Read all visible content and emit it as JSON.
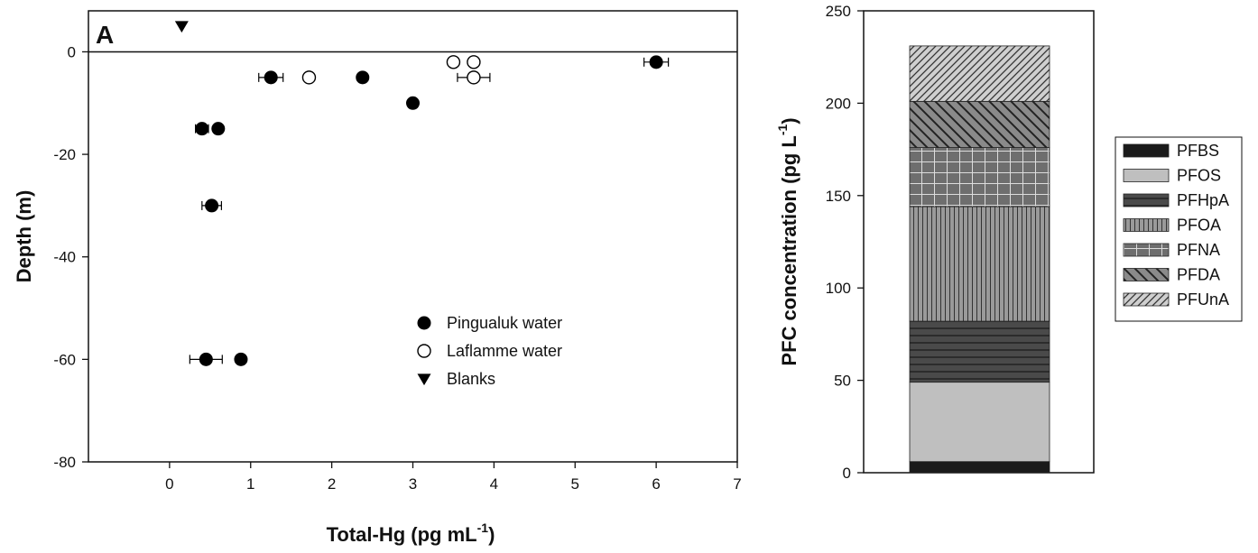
{
  "chart_data": [
    {
      "type": "scatter",
      "panel_label": "A",
      "xlabel": "Total-Hg (pg mL",
      "xlabel_sup": "-1",
      "xlabel_close": ")",
      "ylabel": "Depth (m)",
      "xlim": [
        -1,
        7
      ],
      "ylim": [
        -80,
        8
      ],
      "xticks": [
        0,
        1,
        2,
        3,
        4,
        5,
        6,
        7
      ],
      "yticks": [
        0,
        -20,
        -40,
        -60,
        -80
      ],
      "reference_line_y": 0,
      "legend_position": "bottom-right",
      "series": [
        {
          "name": "Pingualuk water",
          "marker": "filled-circle",
          "points": [
            {
              "x": 1.25,
              "y": -5,
              "xerr": 0.15
            },
            {
              "x": 2.38,
              "y": -5,
              "xerr": 0
            },
            {
              "x": 3.0,
              "y": -10,
              "xerr": 0
            },
            {
              "x": 6.0,
              "y": -2,
              "xerr": 0.15
            },
            {
              "x": 0.4,
              "y": -15,
              "xerr": 0.08
            },
            {
              "x": 0.6,
              "y": -15,
              "xerr": 0
            },
            {
              "x": 0.52,
              "y": -30,
              "xerr": 0.12
            },
            {
              "x": 0.45,
              "y": -60,
              "xerr": 0.2
            },
            {
              "x": 0.88,
              "y": -60,
              "xerr": 0
            }
          ]
        },
        {
          "name": "Laflamme water",
          "marker": "open-circle",
          "points": [
            {
              "x": 1.72,
              "y": -5,
              "xerr": 0
            },
            {
              "x": 3.5,
              "y": -2,
              "xerr": 0
            },
            {
              "x": 3.75,
              "y": -2,
              "xerr": 0
            },
            {
              "x": 3.75,
              "y": -5,
              "xerr": 0.2
            }
          ]
        },
        {
          "name": "Blanks",
          "marker": "filled-triangle-down",
          "points": [
            {
              "x": 0.15,
              "y": 5,
              "xerr": 0
            }
          ]
        }
      ]
    },
    {
      "type": "bar",
      "stacked": true,
      "ylabel": "PFC concentration (pg L",
      "ylabel_sup": "-1",
      "ylabel_close": ")",
      "ylim": [
        0,
        250
      ],
      "yticks": [
        0,
        50,
        100,
        150,
        200,
        250
      ],
      "legend_position": "right",
      "categories": [
        ""
      ],
      "series": [
        {
          "name": "PFBS",
          "values": [
            6
          ],
          "color": "#1a1a1a",
          "pattern": "solid"
        },
        {
          "name": "PFOS",
          "values": [
            43
          ],
          "color": "#bfbfbf",
          "pattern": "solid"
        },
        {
          "name": "PFHpA",
          "values": [
            33
          ],
          "color": "#4a4a4a",
          "pattern": "hlines"
        },
        {
          "name": "PFOA",
          "values": [
            62
          ],
          "color": "#9a9a9a",
          "pattern": "vlines"
        },
        {
          "name": "PFNA",
          "values": [
            32
          ],
          "color": "#6e6e6e",
          "pattern": "grid"
        },
        {
          "name": "PFDA",
          "values": [
            25
          ],
          "color": "#8a8a8a",
          "pattern": "backslash"
        },
        {
          "name": "PFUnA",
          "values": [
            30
          ],
          "color": "#c8c8c8",
          "pattern": "slash"
        }
      ]
    }
  ]
}
